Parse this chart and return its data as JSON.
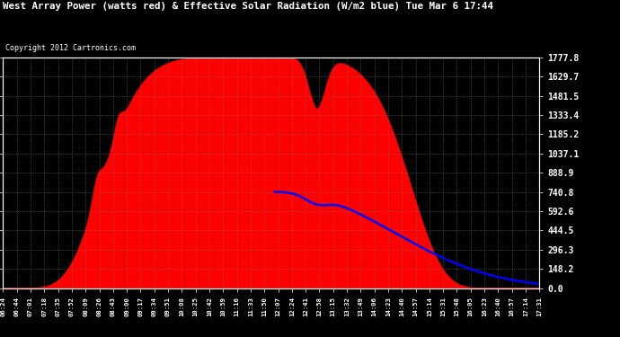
{
  "title": "West Array Power (watts red) & Effective Solar Radiation (W/m2 blue) Tue Mar 6 17:44",
  "copyright": "Copyright 2012 Cartronics.com",
  "yticks": [
    0.0,
    148.2,
    296.3,
    444.5,
    592.6,
    740.8,
    888.9,
    1037.1,
    1185.2,
    1333.4,
    1481.5,
    1629.7,
    1777.8
  ],
  "xlabels": [
    "06:24",
    "06:44",
    "07:01",
    "07:18",
    "07:35",
    "07:52",
    "08:09",
    "08:26",
    "08:43",
    "09:00",
    "09:17",
    "09:34",
    "09:51",
    "10:08",
    "10:25",
    "10:42",
    "10:59",
    "11:16",
    "11:33",
    "11:50",
    "12:07",
    "12:24",
    "12:41",
    "12:58",
    "13:15",
    "13:32",
    "13:49",
    "14:06",
    "14:23",
    "14:40",
    "14:57",
    "15:14",
    "15:31",
    "15:48",
    "16:05",
    "16:23",
    "16:40",
    "16:57",
    "17:14",
    "17:31"
  ],
  "ymax": 1777.8,
  "ymin": 0.0,
  "peak_red": 1777.8,
  "peak_blue": 740.8
}
